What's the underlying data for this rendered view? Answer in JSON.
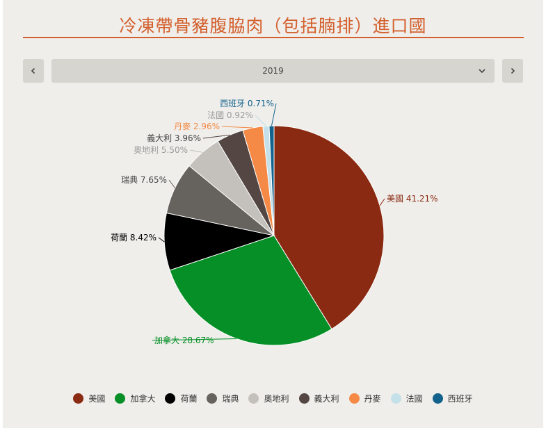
{
  "header": {
    "title": "冷凍帶骨豬腹脇肉（包括腩排）進口國"
  },
  "controls": {
    "prev_icon": "chevron-left-icon",
    "next_icon": "chevron-right-icon",
    "dropdown_icon": "chevron-down-icon",
    "year": "2019"
  },
  "chart_data": {
    "type": "pie",
    "title": "冷凍帶骨豬腹脇肉（包括腩排）進口國",
    "legend_position": "bottom",
    "slices": [
      {
        "name": "美國",
        "label": "美國 41.21%",
        "value": 41.21,
        "color": "#8b2a12"
      },
      {
        "name": "加拿大",
        "label": "加拿大 28.67%",
        "value": 28.67,
        "color": "#058f26"
      },
      {
        "name": "荷蘭",
        "label": "荷蘭 8.42%",
        "value": 8.42,
        "color": "#000000"
      },
      {
        "name": "瑞典",
        "label": "瑞典 7.65%",
        "value": 7.65,
        "color": "#66625e"
      },
      {
        "name": "奧地利",
        "label": "奧地利 5.50%",
        "value": 5.5,
        "color": "#c4c1bc"
      },
      {
        "name": "義大利",
        "label": "義大利 3.96%",
        "value": 3.96,
        "color": "#534643"
      },
      {
        "name": "丹麥",
        "label": "丹麥 2.96%",
        "value": 2.96,
        "color": "#f58a47"
      },
      {
        "name": "法國",
        "label": "法國 0.92%",
        "value": 0.92,
        "color": "#c4e0e8"
      },
      {
        "name": "西班牙",
        "label": "西班牙 0.71%",
        "value": 0.71,
        "color": "#13628c"
      }
    ]
  }
}
